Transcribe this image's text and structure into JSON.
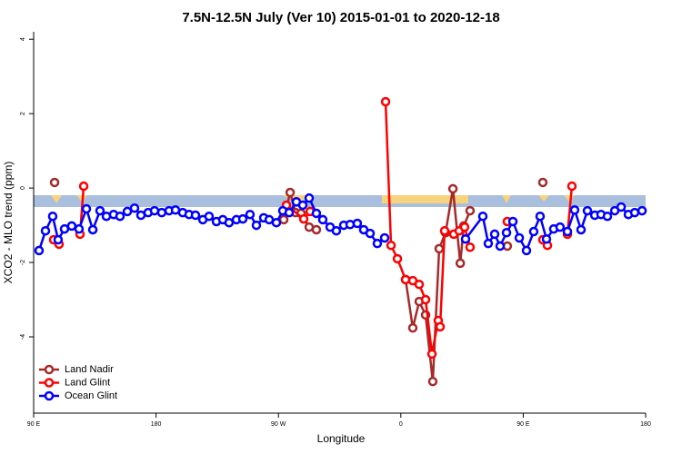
{
  "chart_data": {
    "type": "line",
    "title": "7.5N-12.5N July (Ver 10)   2015-01-01 to 2020-12-18",
    "x_label": "Longitude",
    "y_label": "XCO2 - MLO trend (ppm)",
    "xlim": [
      90,
      540
    ],
    "ylim": [
      -6.05,
      4.2
    ],
    "xticks": [
      {
        "value": 90,
        "label": "90 E"
      },
      180,
      {
        "value": 270,
        "label": "90 W"
      },
      {
        "value": 360,
        "label": "0"
      },
      {
        "value": 450,
        "label": "90 E"
      },
      {
        "value": 540,
        "label": "180"
      }
    ],
    "yticks": [
      -4,
      -2,
      0,
      2,
      4
    ],
    "legend": "bottomleft",
    "series": [
      {
        "name": "Land Nadir",
        "color": "#a52a2a",
        "x": [
          105.4,
          null,
          273.9,
          278.6,
          282.6,
          286.6,
          292.6,
          297.9,
          null,
          363.5,
          368.8,
          373.5,
          378.2,
          383.5,
          388.2,
          392.9,
          398.3,
          403.7,
          406.3,
          410.9,
          null,
          438.3,
          null,
          464.4
        ],
        "values": [
          0.15,
          null,
          -0.85,
          -0.12,
          -0.66,
          -0.68,
          -1.05,
          -1.12,
          null,
          -2.46,
          -3.76,
          -3.05,
          -3.41,
          -5.2,
          -1.63,
          -1.2,
          -0.02,
          -2.02,
          -1.02,
          -0.61,
          null,
          -1.56,
          null,
          0.15
        ]
      },
      {
        "name": "Land Glint",
        "color": "#ff0000",
        "x": [
          104.7,
          108.7,
          null,
          124.1,
          126.8,
          null,
          275.9,
          288.6,
          293.3,
          null,
          348.8,
          352.8,
          357.5,
          363.5,
          368.8,
          373.5,
          378.2,
          382.9,
          387.5,
          388.9,
          392.2,
          398.9,
          402.9,
          406.9,
          410.9,
          null,
          438.3,
          null,
          464.4,
          467.8,
          null,
          482.5,
          485.8
        ],
        "values": [
          -1.39,
          -1.51,
          null,
          -1.24,
          0.05,
          null,
          -0.46,
          -0.83,
          -0.63,
          null,
          2.32,
          -1.54,
          -1.9,
          -2.46,
          -2.49,
          -2.59,
          -3.0,
          -4.46,
          -3.56,
          -3.73,
          -1.15,
          -1.24,
          -1.15,
          -1.05,
          -1.59,
          null,
          -0.9,
          null,
          -1.39,
          -1.54,
          null,
          -1.24,
          0.05
        ]
      },
      {
        "name": "Ocean Glint",
        "color": "#0000ff",
        "x": [
          94,
          98.7,
          104,
          108,
          112.7,
          118,
          123.4,
          128.8,
          133.5,
          138.8,
          143.5,
          148.8,
          153.5,
          158.9,
          164.2,
          168.9,
          174.2,
          178.9,
          184.2,
          189.6,
          194.3,
          199.6,
          204.3,
          209,
          214.4,
          219,
          224.4,
          229.1,
          233.7,
          239.1,
          243.8,
          249.1,
          253.8,
          259.2,
          263.2,
          268.5,
          273.2,
          277.9,
          283.2,
          287.9,
          292.6,
          297.9,
          302.6,
          308,
          312.6,
          318,
          322.7,
          328,
          332.7,
          337.4,
          342.7,
          348.1,
          null,
          407.6,
          420.3,
          424.3,
          429,
          433,
          437.7,
          442.4,
          447.1,
          452.4,
          457.7,
          462.4,
          467.1,
          472.4,
          477.1,
          482.5,
          487.8,
          492.5,
          497.2,
          502.6,
          507.2,
          511.9,
          517.3,
          522,
          527.3,
          532,
          537.4
        ],
        "values": [
          -1.68,
          -1.15,
          -0.76,
          -1.39,
          -1.1,
          -1.02,
          -1.1,
          -0.56,
          -1.12,
          -0.61,
          -0.76,
          -0.71,
          -0.76,
          -0.63,
          -0.54,
          -0.73,
          -0.66,
          -0.61,
          -0.66,
          -0.61,
          -0.59,
          -0.66,
          -0.71,
          -0.73,
          -0.85,
          -0.76,
          -0.9,
          -0.85,
          -0.93,
          -0.85,
          -0.83,
          -0.71,
          -1.0,
          -0.8,
          -0.85,
          -0.93,
          -0.61,
          -0.66,
          -0.37,
          -0.46,
          -0.27,
          -0.68,
          -0.85,
          -1.05,
          -1.15,
          -1.0,
          -0.98,
          -0.95,
          -1.12,
          -1.22,
          -1.49,
          -1.34,
          null,
          -1.37,
          -0.76,
          -1.49,
          -1.24,
          -1.56,
          -1.2,
          -0.9,
          -1.34,
          -1.68,
          -1.17,
          -0.76,
          -1.37,
          -1.1,
          -1.05,
          -1.17,
          -0.59,
          -1.12,
          -0.61,
          -0.73,
          -0.71,
          -0.76,
          -0.61,
          -0.51,
          -0.71,
          -0.66,
          -0.61
        ]
      }
    ]
  }
}
